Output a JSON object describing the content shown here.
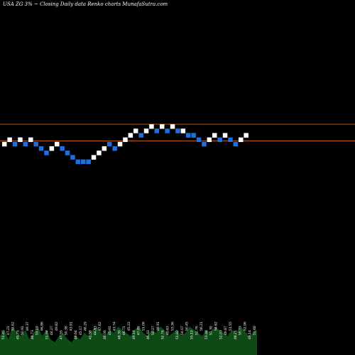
{
  "header": {
    "title": "USA ZG 3% ~  Closing Daily data  Renko  charts MunafaSutra.com"
  },
  "colors": {
    "background": "#000000",
    "up_brick": "#ffffff",
    "down_brick": "#1f6fe0",
    "reference_line": "#b85a1a",
    "volume": "#0d4a16"
  },
  "chart_data": {
    "type": "renko",
    "title": "USA ZG 3% ~  Closing Daily data  Renko  charts MunafaSutra.com",
    "brick_step_pct": 3,
    "reference_lines": [
      1,
      -2
    ],
    "bricks": [
      {
        "dir": "up",
        "level": 0
      },
      {
        "dir": "up",
        "level": 1
      },
      {
        "dir": "down",
        "level": 0
      },
      {
        "dir": "up",
        "level": 1
      },
      {
        "dir": "down",
        "level": 0
      },
      {
        "dir": "up",
        "level": 1
      },
      {
        "dir": "down",
        "level": 0
      },
      {
        "dir": "down",
        "level": -1
      },
      {
        "dir": "down",
        "level": -2
      },
      {
        "dir": "up",
        "level": -1
      },
      {
        "dir": "up",
        "level": 0
      },
      {
        "dir": "down",
        "level": -1
      },
      {
        "dir": "down",
        "level": -2
      },
      {
        "dir": "down",
        "level": -3
      },
      {
        "dir": "down",
        "level": -4
      },
      {
        "dir": "down",
        "level": -4
      },
      {
        "dir": "down",
        "level": -4
      },
      {
        "dir": "up",
        "level": -3
      },
      {
        "dir": "up",
        "level": -2
      },
      {
        "dir": "up",
        "level": -1
      },
      {
        "dir": "down",
        "level": 0
      },
      {
        "dir": "down",
        "level": -1
      },
      {
        "dir": "up",
        "level": 0
      },
      {
        "dir": "up",
        "level": 1
      },
      {
        "dir": "up",
        "level": 2
      },
      {
        "dir": "up",
        "level": 3
      },
      {
        "dir": "down",
        "level": 2
      },
      {
        "dir": "up",
        "level": 3
      },
      {
        "dir": "up",
        "level": 4
      },
      {
        "dir": "down",
        "level": 3
      },
      {
        "dir": "up",
        "level": 4
      },
      {
        "dir": "down",
        "level": 3
      },
      {
        "dir": "up",
        "level": 4
      },
      {
        "dir": "down",
        "level": 3
      },
      {
        "dir": "up",
        "level": 3
      },
      {
        "dir": "down",
        "level": 2
      },
      {
        "dir": "down",
        "level": 2
      },
      {
        "dir": "down",
        "level": 1
      },
      {
        "dir": "down",
        "level": 0
      },
      {
        "dir": "up",
        "level": 1
      },
      {
        "dir": "up",
        "level": 2
      },
      {
        "dir": "down",
        "level": 1
      },
      {
        "dir": "up",
        "level": 2
      },
      {
        "dir": "down",
        "level": 1
      },
      {
        "dir": "down",
        "level": 0
      },
      {
        "dir": "up",
        "level": 1
      },
      {
        "dir": "up",
        "level": 2
      }
    ],
    "volume": [
      6,
      8,
      5,
      9,
      7,
      6,
      8,
      5,
      7,
      9,
      6,
      8,
      5,
      4,
      6,
      7,
      5,
      4,
      6,
      5,
      7,
      6,
      8,
      9,
      7,
      6,
      8,
      7,
      9,
      8,
      7,
      6,
      8,
      9,
      7,
      6,
      8,
      7,
      9,
      8,
      6,
      7,
      8,
      6,
      7,
      9,
      8,
      7,
      6,
      8,
      7,
      9,
      8,
      7,
      6,
      8,
      7,
      9,
      8,
      6,
      7,
      8
    ],
    "volume_labels": [
      "51.45",
      "47.21",
      "52.62",
      "45.75",
      "50.91",
      "49.37",
      "48.73",
      "53.19",
      "46.86",
      "51.94",
      "44.27",
      "49.82",
      "47.55",
      "50.38",
      "43.91",
      "48.64",
      "45.17",
      "46.29",
      "42.58",
      "44.83",
      "47.62",
      "46.06",
      "45.91",
      "43.74",
      "48.39",
      "46.71",
      "45.22",
      "49.18",
      "47.85",
      "51.06",
      "46.43",
      "50.27",
      "48.91",
      "52.74",
      "49.63",
      "53.36",
      "51.82",
      "54.07",
      "50.45",
      "55.19",
      "52.76",
      "56.21",
      "53.48",
      "51.39",
      "54.62",
      "52.03",
      "49.87",
      "51.55",
      "48.21",
      "50.73",
      "52.96",
      "49.14",
      "51.68"
    ]
  }
}
